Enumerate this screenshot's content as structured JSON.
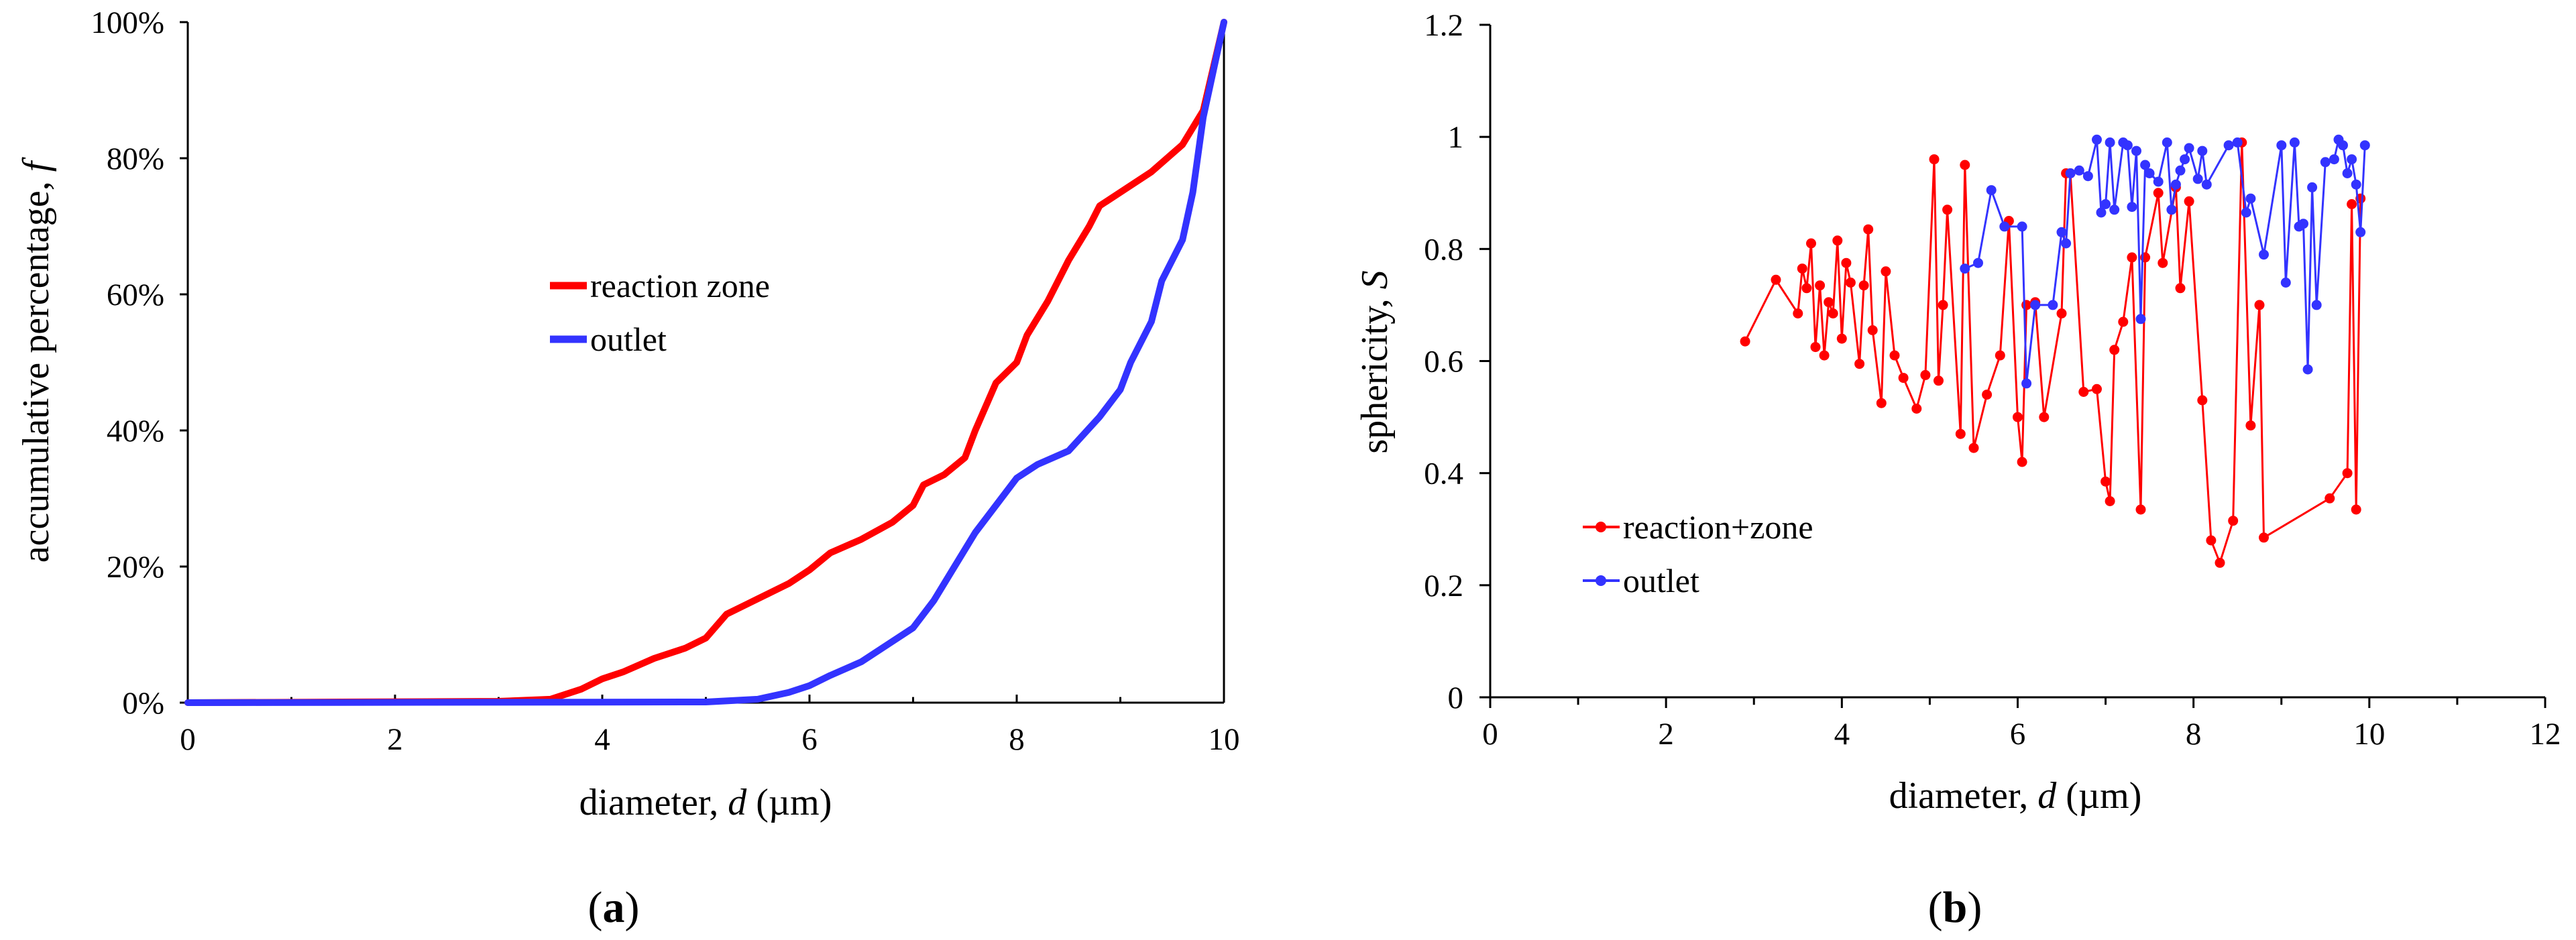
{
  "figure": {
    "captions": [
      {
        "open": "(",
        "letter": "a",
        "close": ")"
      },
      {
        "open": "(",
        "letter": "b",
        "close": ")"
      }
    ]
  },
  "chart_data": [
    {
      "type": "line",
      "id": "a",
      "title": "",
      "xlabel": {
        "prefix": "diameter, ",
        "var": "d",
        "suffix": " (µm)"
      },
      "ylabel": {
        "prefix": "accumulative percentage, ",
        "var": "f"
      },
      "xlim": [
        0,
        10
      ],
      "ylim": [
        0,
        100
      ],
      "x_ticks": [
        0,
        2,
        4,
        6,
        8,
        10
      ],
      "x_tick_labels": [
        "0",
        "2",
        "4",
        "6",
        "8",
        "10"
      ],
      "y_ticks": [
        0,
        20,
        40,
        60,
        80,
        100
      ],
      "y_tick_labels": [
        "0%",
        "20%",
        "40%",
        "60%",
        "80%",
        "100%"
      ],
      "legend_position": "center",
      "series": [
        {
          "name": "reaction zone",
          "color": "#ff0000",
          "x": [
            0,
            3.0,
            3.5,
            3.8,
            4.0,
            4.2,
            4.5,
            4.8,
            5.0,
            5.2,
            5.4,
            5.6,
            5.8,
            6.0,
            6.2,
            6.5,
            6.8,
            7.0,
            7.1,
            7.3,
            7.5,
            7.6,
            7.8,
            8.0,
            8.1,
            8.3,
            8.5,
            8.7,
            8.8,
            9.0,
            9.3,
            9.6,
            9.8,
            10.0
          ],
          "values": [
            0,
            0.2,
            0.5,
            2.0,
            3.5,
            4.5,
            6.5,
            8.0,
            9.5,
            13.0,
            14.5,
            16.0,
            17.5,
            19.5,
            22.0,
            24.0,
            26.5,
            29.0,
            32.0,
            33.5,
            36.0,
            40.0,
            47.0,
            50.0,
            54.0,
            59.0,
            65.0,
            70.0,
            73.0,
            75.0,
            78.0,
            82.0,
            87.0,
            100.0
          ]
        },
        {
          "name": "outlet",
          "color": "#3333ff",
          "x": [
            0,
            5.0,
            5.5,
            5.8,
            6.0,
            6.2,
            6.5,
            6.7,
            7.0,
            7.2,
            7.4,
            7.6,
            7.8,
            8.0,
            8.2,
            8.5,
            8.8,
            9.0,
            9.1,
            9.3,
            9.4,
            9.6,
            9.7,
            9.8,
            9.9,
            10.0
          ],
          "values": [
            0,
            0.1,
            0.5,
            1.5,
            2.5,
            4.0,
            6.0,
            8.0,
            11.0,
            15.0,
            20.0,
            25.0,
            29.0,
            33.0,
            35.0,
            37.0,
            42.0,
            46.0,
            50.0,
            56.0,
            62.0,
            68.0,
            75.0,
            86.0,
            93.0,
            100.0
          ]
        }
      ]
    },
    {
      "type": "line",
      "id": "b",
      "title": "",
      "xlabel": {
        "prefix": "diameter, ",
        "var": "d",
        "suffix": " (µm)"
      },
      "ylabel": {
        "prefix": "sphericity, ",
        "var": "S"
      },
      "xlim": [
        0,
        12
      ],
      "ylim": [
        0,
        1.2
      ],
      "x_ticks": [
        0,
        2,
        4,
        6,
        8,
        10,
        12
      ],
      "x_tick_labels": [
        "0",
        "2",
        "4",
        "6",
        "8",
        "10",
        "12"
      ],
      "y_ticks": [
        0,
        0.2,
        0.4,
        0.6,
        0.8,
        1.0,
        1.2
      ],
      "y_tick_labels": [
        "0",
        "0.2",
        "0.4",
        "0.6",
        "0.8",
        "1",
        "1.2"
      ],
      "legend_position": "bottom-left",
      "series": [
        {
          "name": "reaction+zone",
          "color": "#ff0000",
          "x": [
            2.9,
            3.25,
            3.5,
            3.55,
            3.6,
            3.65,
            3.7,
            3.75,
            3.8,
            3.85,
            3.9,
            3.95,
            4.0,
            4.05,
            4.1,
            4.2,
            4.25,
            4.3,
            4.35,
            4.45,
            4.5,
            4.6,
            4.7,
            4.85,
            4.95,
            5.05,
            5.1,
            5.15,
            5.2,
            5.35,
            5.4,
            5.5,
            5.65,
            5.8,
            5.9,
            6.0,
            6.05,
            6.1,
            6.2,
            6.3,
            6.5,
            6.55,
            6.6,
            6.75,
            6.9,
            7.0,
            7.05,
            7.1,
            7.2,
            7.3,
            7.4,
            7.45,
            7.6,
            7.65,
            7.8,
            7.85,
            7.95,
            8.1,
            8.2,
            8.3,
            8.45,
            8.55,
            8.65,
            8.75,
            8.8,
            9.55,
            9.75,
            9.8,
            9.85,
            9.9
          ],
          "values": [
            0.635,
            0.745,
            0.685,
            0.765,
            0.73,
            0.81,
            0.625,
            0.735,
            0.61,
            0.705,
            0.685,
            0.815,
            0.64,
            0.775,
            0.74,
            0.595,
            0.735,
            0.835,
            0.655,
            0.525,
            0.76,
            0.61,
            0.57,
            0.515,
            0.575,
            0.96,
            0.565,
            0.7,
            0.87,
            0.47,
            0.95,
            0.445,
            0.54,
            0.61,
            0.85,
            0.5,
            0.42,
            0.7,
            0.705,
            0.5,
            0.685,
            0.935,
            0.935,
            0.545,
            0.55,
            0.385,
            0.35,
            0.62,
            0.67,
            0.785,
            0.335,
            0.785,
            0.9,
            0.775,
            0.91,
            0.73,
            0.885,
            0.53,
            0.28,
            0.24,
            0.315,
            0.99,
            0.485,
            0.7,
            0.285,
            0.355,
            0.4,
            0.88,
            0.335,
            0.89
          ]
        },
        {
          "name": "outlet",
          "color": "#3333ff",
          "x": [
            5.4,
            5.55,
            5.7,
            5.85,
            6.05,
            6.1,
            6.2,
            6.4,
            6.5,
            6.55,
            6.6,
            6.7,
            6.8,
            6.9,
            6.95,
            7.0,
            7.05,
            7.1,
            7.2,
            7.25,
            7.3,
            7.35,
            7.4,
            7.45,
            7.5,
            7.6,
            7.7,
            7.75,
            7.8,
            7.85,
            7.9,
            7.95,
            8.05,
            8.1,
            8.15,
            8.4,
            8.5,
            8.6,
            8.65,
            8.8,
            9.0,
            9.05,
            9.15,
            9.2,
            9.25,
            9.3,
            9.35,
            9.4,
            9.5,
            9.6,
            9.65,
            9.7,
            9.75,
            9.8,
            9.85,
            9.9,
            9.95
          ],
          "values": [
            0.765,
            0.775,
            0.905,
            0.84,
            0.84,
            0.56,
            0.7,
            0.7,
            0.83,
            0.81,
            0.935,
            0.94,
            0.93,
            0.995,
            0.865,
            0.88,
            0.99,
            0.87,
            0.99,
            0.985,
            0.875,
            0.975,
            0.675,
            0.95,
            0.935,
            0.92,
            0.99,
            0.87,
            0.915,
            0.94,
            0.96,
            0.98,
            0.925,
            0.975,
            0.915,
            0.985,
            0.99,
            0.865,
            0.89,
            0.79,
            0.985,
            0.74,
            0.99,
            0.84,
            0.845,
            0.585,
            0.91,
            0.7,
            0.955,
            0.96,
            0.995,
            0.985,
            0.935,
            0.96,
            0.915,
            0.83,
            0.985
          ]
        }
      ]
    }
  ]
}
